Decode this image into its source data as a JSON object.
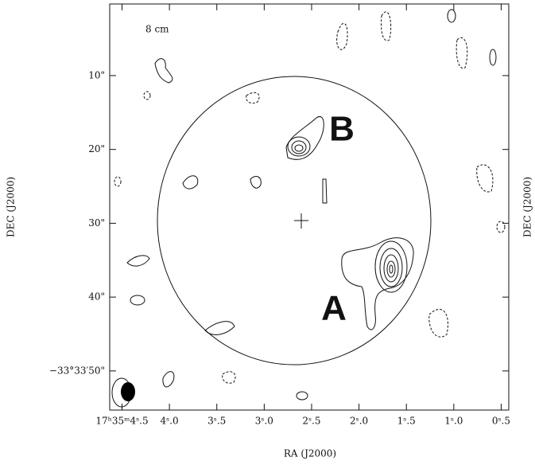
{
  "chart_data": {
    "type": "contour",
    "xlabel": "RA (J2000)",
    "ylabel": "DEC (J2000)",
    "y2label": "DEC (J2000)",
    "annotations": [
      "8 cm",
      "B",
      "A"
    ],
    "xlim": [
      4.63,
      0.42
    ],
    "xticks": [
      {
        "value": 4.5,
        "label": "17ʰ35ᵐ4ˢ.5"
      },
      {
        "value": 4.0,
        "label": "4ˢ.0"
      },
      {
        "value": 3.5,
        "label": "3ˢ.5"
      },
      {
        "value": 3.0,
        "label": "3ˢ.0"
      },
      {
        "value": 2.5,
        "label": "2ˢ.5"
      },
      {
        "value": 2.0,
        "label": "2ˢ.0"
      },
      {
        "value": 1.5,
        "label": "1ˢ.5"
      },
      {
        "value": 1.0,
        "label": "1ˢ.0"
      },
      {
        "value": 0.5,
        "label": "0ˢ.5"
      }
    ],
    "ylim": [
      55.3,
      0.3
    ],
    "yticks": [
      {
        "value": 10,
        "label": "10\""
      },
      {
        "value": 20,
        "label": "20\""
      },
      {
        "value": 30,
        "label": "30\""
      },
      {
        "value": 40,
        "label": "40\""
      },
      {
        "value": 50,
        "label": "−33°33′50\""
      }
    ]
  }
}
